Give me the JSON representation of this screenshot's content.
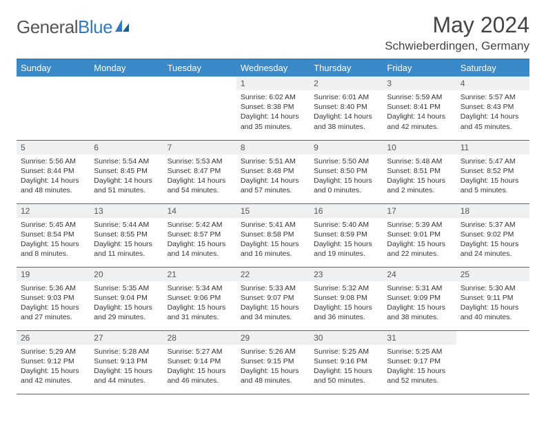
{
  "brand": {
    "part1": "General",
    "part2": "Blue"
  },
  "title": "May 2024",
  "location": "Schwieberdingen, Germany",
  "colors": {
    "header_bg": "#3a89c9",
    "header_border": "#2e6ea3",
    "daynum_bg": "#eef0f2",
    "brand_blue": "#2e7cc0"
  },
  "weekdays": [
    "Sunday",
    "Monday",
    "Tuesday",
    "Wednesday",
    "Thursday",
    "Friday",
    "Saturday"
  ],
  "grid": [
    [
      {
        "empty": true
      },
      {
        "empty": true
      },
      {
        "empty": true
      },
      {
        "num": "1",
        "sunrise": "6:02 AM",
        "sunset": "8:38 PM",
        "dl1": "Daylight: 14 hours",
        "dl2": "and 35 minutes."
      },
      {
        "num": "2",
        "sunrise": "6:01 AM",
        "sunset": "8:40 PM",
        "dl1": "Daylight: 14 hours",
        "dl2": "and 38 minutes."
      },
      {
        "num": "3",
        "sunrise": "5:59 AM",
        "sunset": "8:41 PM",
        "dl1": "Daylight: 14 hours",
        "dl2": "and 42 minutes."
      },
      {
        "num": "4",
        "sunrise": "5:57 AM",
        "sunset": "8:43 PM",
        "dl1": "Daylight: 14 hours",
        "dl2": "and 45 minutes."
      }
    ],
    [
      {
        "num": "5",
        "sunrise": "5:56 AM",
        "sunset": "8:44 PM",
        "dl1": "Daylight: 14 hours",
        "dl2": "and 48 minutes."
      },
      {
        "num": "6",
        "sunrise": "5:54 AM",
        "sunset": "8:45 PM",
        "dl1": "Daylight: 14 hours",
        "dl2": "and 51 minutes."
      },
      {
        "num": "7",
        "sunrise": "5:53 AM",
        "sunset": "8:47 PM",
        "dl1": "Daylight: 14 hours",
        "dl2": "and 54 minutes."
      },
      {
        "num": "8",
        "sunrise": "5:51 AM",
        "sunset": "8:48 PM",
        "dl1": "Daylight: 14 hours",
        "dl2": "and 57 minutes."
      },
      {
        "num": "9",
        "sunrise": "5:50 AM",
        "sunset": "8:50 PM",
        "dl1": "Daylight: 15 hours",
        "dl2": "and 0 minutes."
      },
      {
        "num": "10",
        "sunrise": "5:48 AM",
        "sunset": "8:51 PM",
        "dl1": "Daylight: 15 hours",
        "dl2": "and 2 minutes."
      },
      {
        "num": "11",
        "sunrise": "5:47 AM",
        "sunset": "8:52 PM",
        "dl1": "Daylight: 15 hours",
        "dl2": "and 5 minutes."
      }
    ],
    [
      {
        "num": "12",
        "sunrise": "5:45 AM",
        "sunset": "8:54 PM",
        "dl1": "Daylight: 15 hours",
        "dl2": "and 8 minutes."
      },
      {
        "num": "13",
        "sunrise": "5:44 AM",
        "sunset": "8:55 PM",
        "dl1": "Daylight: 15 hours",
        "dl2": "and 11 minutes."
      },
      {
        "num": "14",
        "sunrise": "5:42 AM",
        "sunset": "8:57 PM",
        "dl1": "Daylight: 15 hours",
        "dl2": "and 14 minutes."
      },
      {
        "num": "15",
        "sunrise": "5:41 AM",
        "sunset": "8:58 PM",
        "dl1": "Daylight: 15 hours",
        "dl2": "and 16 minutes."
      },
      {
        "num": "16",
        "sunrise": "5:40 AM",
        "sunset": "8:59 PM",
        "dl1": "Daylight: 15 hours",
        "dl2": "and 19 minutes."
      },
      {
        "num": "17",
        "sunrise": "5:39 AM",
        "sunset": "9:01 PM",
        "dl1": "Daylight: 15 hours",
        "dl2": "and 22 minutes."
      },
      {
        "num": "18",
        "sunrise": "5:37 AM",
        "sunset": "9:02 PM",
        "dl1": "Daylight: 15 hours",
        "dl2": "and 24 minutes."
      }
    ],
    [
      {
        "num": "19",
        "sunrise": "5:36 AM",
        "sunset": "9:03 PM",
        "dl1": "Daylight: 15 hours",
        "dl2": "and 27 minutes."
      },
      {
        "num": "20",
        "sunrise": "5:35 AM",
        "sunset": "9:04 PM",
        "dl1": "Daylight: 15 hours",
        "dl2": "and 29 minutes."
      },
      {
        "num": "21",
        "sunrise": "5:34 AM",
        "sunset": "9:06 PM",
        "dl1": "Daylight: 15 hours",
        "dl2": "and 31 minutes."
      },
      {
        "num": "22",
        "sunrise": "5:33 AM",
        "sunset": "9:07 PM",
        "dl1": "Daylight: 15 hours",
        "dl2": "and 34 minutes."
      },
      {
        "num": "23",
        "sunrise": "5:32 AM",
        "sunset": "9:08 PM",
        "dl1": "Daylight: 15 hours",
        "dl2": "and 36 minutes."
      },
      {
        "num": "24",
        "sunrise": "5:31 AM",
        "sunset": "9:09 PM",
        "dl1": "Daylight: 15 hours",
        "dl2": "and 38 minutes."
      },
      {
        "num": "25",
        "sunrise": "5:30 AM",
        "sunset": "9:11 PM",
        "dl1": "Daylight: 15 hours",
        "dl2": "and 40 minutes."
      }
    ],
    [
      {
        "num": "26",
        "sunrise": "5:29 AM",
        "sunset": "9:12 PM",
        "dl1": "Daylight: 15 hours",
        "dl2": "and 42 minutes."
      },
      {
        "num": "27",
        "sunrise": "5:28 AM",
        "sunset": "9:13 PM",
        "dl1": "Daylight: 15 hours",
        "dl2": "and 44 minutes."
      },
      {
        "num": "28",
        "sunrise": "5:27 AM",
        "sunset": "9:14 PM",
        "dl1": "Daylight: 15 hours",
        "dl2": "and 46 minutes."
      },
      {
        "num": "29",
        "sunrise": "5:26 AM",
        "sunset": "9:15 PM",
        "dl1": "Daylight: 15 hours",
        "dl2": "and 48 minutes."
      },
      {
        "num": "30",
        "sunrise": "5:25 AM",
        "sunset": "9:16 PM",
        "dl1": "Daylight: 15 hours",
        "dl2": "and 50 minutes."
      },
      {
        "num": "31",
        "sunrise": "5:25 AM",
        "sunset": "9:17 PM",
        "dl1": "Daylight: 15 hours",
        "dl2": "and 52 minutes."
      },
      {
        "empty": true
      }
    ]
  ],
  "labels": {
    "sunrise_prefix": "Sunrise: ",
    "sunset_prefix": "Sunset: "
  }
}
